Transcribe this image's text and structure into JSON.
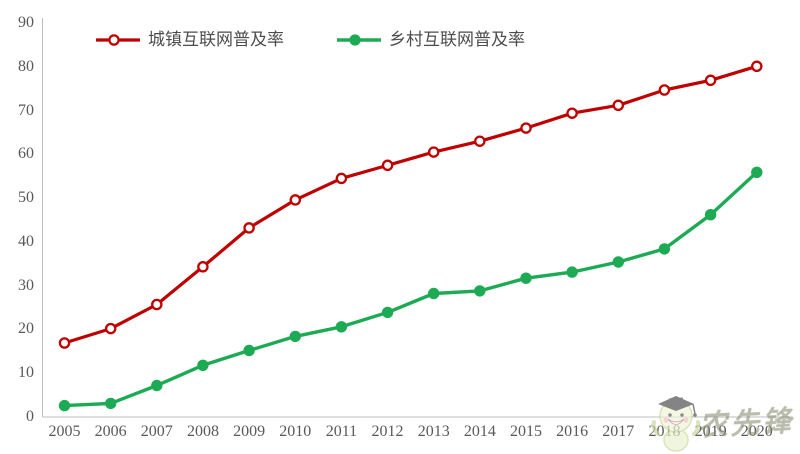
{
  "chart_data": {
    "type": "line",
    "categories": [
      "2005",
      "2006",
      "2007",
      "2008",
      "2009",
      "2010",
      "2011",
      "2012",
      "2013",
      "2014",
      "2015",
      "2016",
      "2017",
      "2018",
      "2019",
      "2020"
    ],
    "series": [
      {
        "name": "城镇互联网普及率",
        "color": "#c00000",
        "marker": "open-circle",
        "values": [
          16.9,
          20.2,
          25.7,
          34.3,
          43.2,
          49.6,
          54.5,
          57.5,
          60.5,
          63.0,
          66.0,
          69.4,
          71.2,
          74.7,
          76.9,
          80.1
        ]
      },
      {
        "name": "乡村互联网普及率",
        "color": "#1cab54",
        "marker": "filled-circle",
        "values": [
          2.6,
          3.1,
          7.2,
          11.8,
          15.2,
          18.4,
          20.6,
          23.9,
          28.2,
          28.8,
          31.7,
          33.1,
          35.4,
          38.4,
          46.2,
          55.9
        ]
      }
    ],
    "ylim": [
      0,
      90
    ],
    "yticks": [
      0,
      10,
      20,
      30,
      40,
      50,
      60,
      70,
      80,
      90
    ],
    "grid": false,
    "legend_position": "top-left",
    "axis_color": "#bdbdbd",
    "tick_text_color": "#595959"
  },
  "watermark": {
    "text": "农先锋",
    "mascot": "graduate-mascot"
  }
}
